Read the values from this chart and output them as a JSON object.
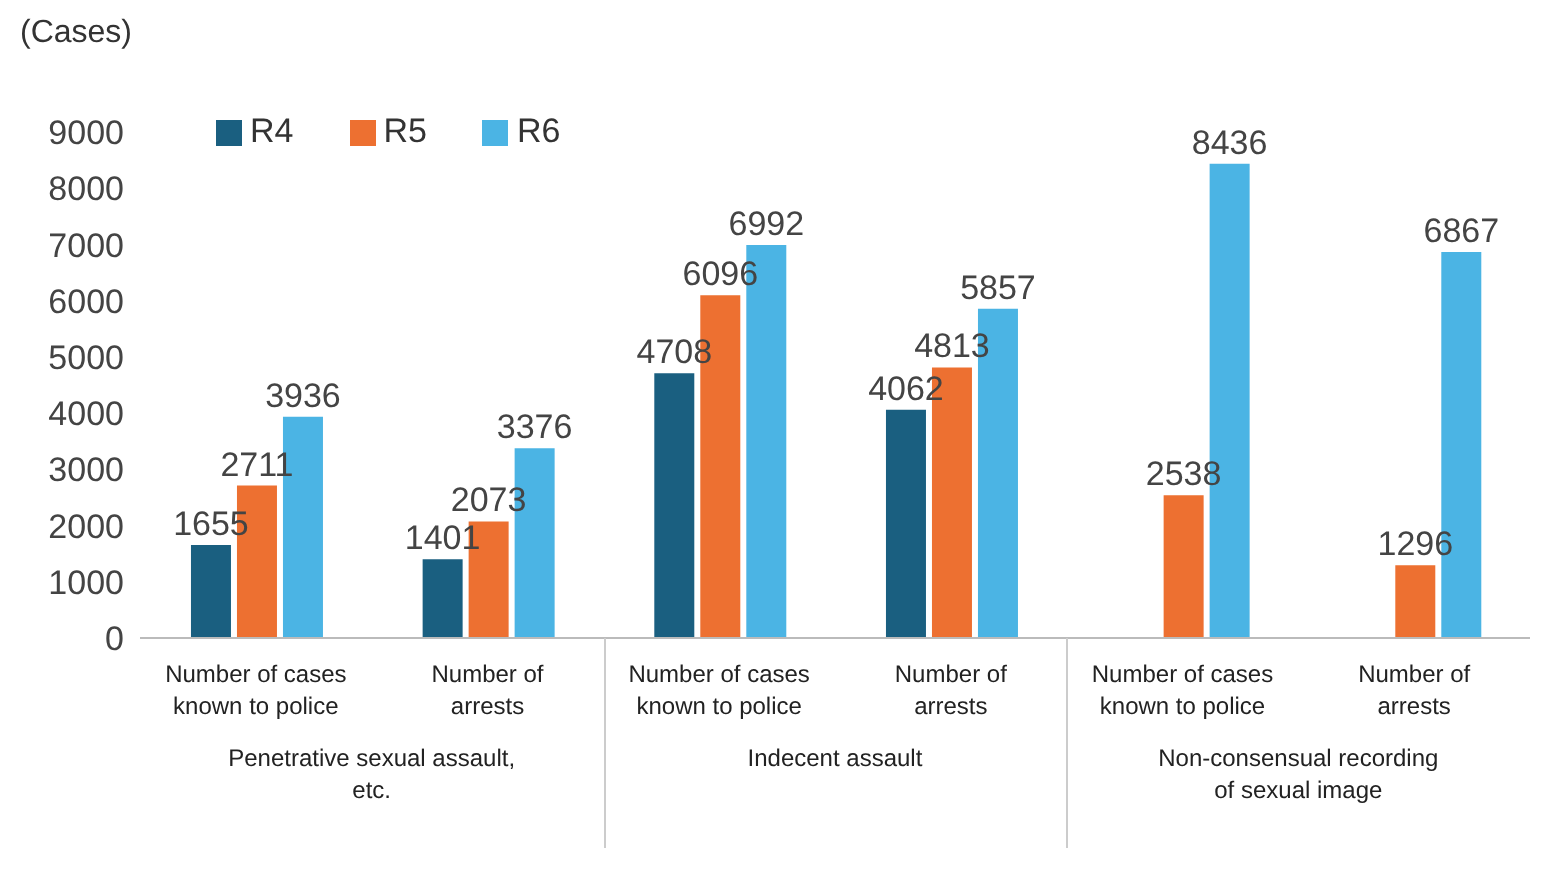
{
  "chart_data": {
    "type": "bar",
    "ylabel": "(Cases)",
    "categories": [
      "Number of cases known to police",
      "Number of arrests",
      "Number of cases known to police",
      "Number of arrests",
      "Number of cases known to police",
      "Number of arrests"
    ],
    "series": [
      {
        "name": "R4",
        "color": "#1a5f80",
        "values": [
          1655,
          1401,
          4708,
          4062,
          null,
          null
        ]
      },
      {
        "name": "R5",
        "color": "#ed7031",
        "values": [
          2711,
          2073,
          6096,
          4813,
          2538,
          1296
        ]
      },
      {
        "name": "R6",
        "color": "#4bb4e4",
        "values": [
          3936,
          3376,
          6992,
          5857,
          8436,
          6867
        ]
      }
    ],
    "annotations": [
      "Penetrative sexual assault, etc.",
      "Indecent assault",
      "Non-consensual recording of sexual image"
    ],
    "ylim": [
      0,
      9000
    ],
    "yticks": [
      0,
      1000,
      2000,
      3000,
      4000,
      5000,
      6000,
      7000,
      8000,
      9000
    ],
    "data_labels": true,
    "grid": false,
    "legend": "top left"
  }
}
